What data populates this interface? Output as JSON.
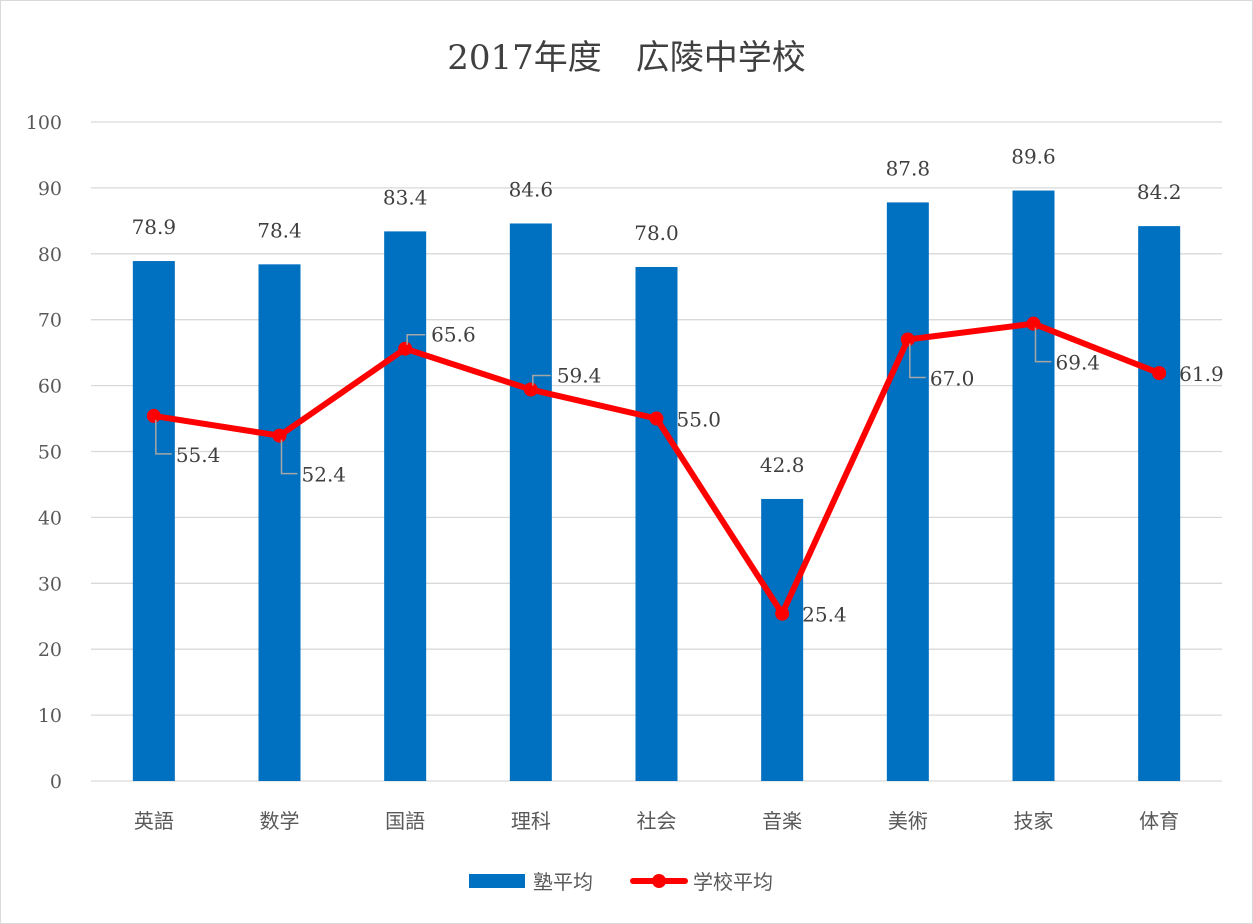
{
  "chart_data": {
    "type": "bar",
    "title": "2017年度　広陵中学校",
    "categories": [
      "英語",
      "数学",
      "国語",
      "理科",
      "社会",
      "音楽",
      "美術",
      "技家",
      "体育"
    ],
    "series": [
      {
        "name": "塾平均",
        "kind": "bar",
        "color": "#0070c0",
        "values": [
          78.9,
          78.4,
          83.4,
          84.6,
          78.0,
          42.8,
          87.8,
          89.6,
          84.2
        ]
      },
      {
        "name": "学校平均",
        "kind": "line",
        "color": "#ff0000",
        "values": [
          55.4,
          52.4,
          65.6,
          59.4,
          55.0,
          25.4,
          67.0,
          69.4,
          61.9
        ]
      }
    ],
    "ylim": [
      0,
      100
    ],
    "yticks": [
      0,
      10,
      20,
      30,
      40,
      50,
      60,
      70,
      80,
      90,
      100
    ],
    "grid": true,
    "legend": "bottom",
    "xlabel": "",
    "ylabel": ""
  }
}
